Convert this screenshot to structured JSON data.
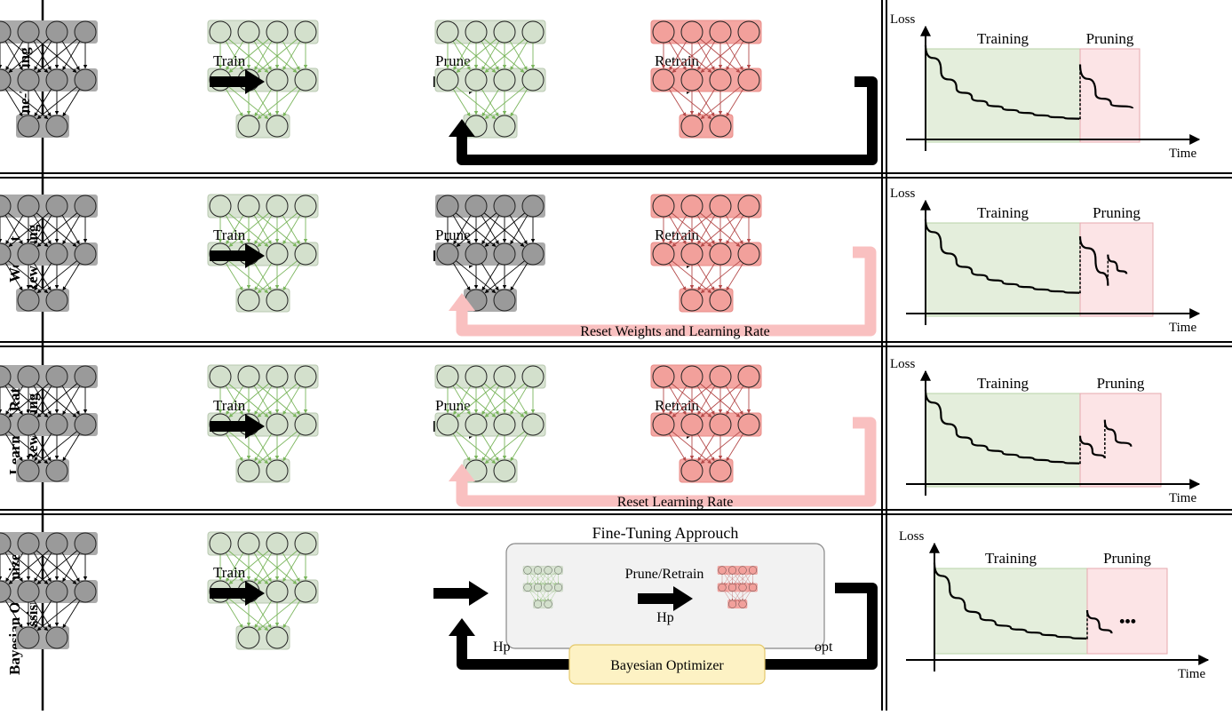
{
  "rows": [
    {
      "label_lines": [
        "Fine-Tuning"
      ],
      "mode": "ft",
      "steps": [
        "Train",
        "Prune",
        "Retrain"
      ],
      "feedback": {
        "style": "dark",
        "label": ""
      },
      "third_net_color": "green",
      "chart_data": {
        "type": "line",
        "xlabel": "Time",
        "ylabel": "Loss",
        "phases": [
          "Training",
          "Pruning"
        ],
        "segments": [
          {
            "x": [
              0,
              1,
              2,
              3,
              4,
              5,
              6,
              7,
              8,
              9,
              10
            ],
            "y": [
              0.88,
              0.64,
              0.48,
              0.39,
              0.33,
              0.29,
              0.26,
              0.235,
              0.215,
              0.2,
              0.19
            ]
          },
          {
            "x": [
              10,
              11,
              12,
              13.4
            ],
            "y": [
              0.7,
              0.43,
              0.33,
              0.29
            ]
          }
        ],
        "drops": [
          10
        ]
      }
    },
    {
      "label_lines": [
        "Weight",
        "Rewinding"
      ],
      "mode": "wr",
      "steps": [
        "Train",
        "Prune",
        "Retrain"
      ],
      "feedback": {
        "style": "pink",
        "label": "Reset Weights and Learning Rate"
      },
      "third_net_color": "gray",
      "chart_data": {
        "type": "line",
        "xlabel": "Time",
        "ylabel": "Loss",
        "phases": [
          "Training",
          "Pruning"
        ],
        "segments": [
          {
            "x": [
              0,
              1,
              2,
              3,
              4,
              5,
              6,
              7,
              8,
              9,
              10
            ],
            "y": [
              0.88,
              0.64,
              0.48,
              0.39,
              0.33,
              0.29,
              0.26,
              0.235,
              0.215,
              0.2,
              0.19
            ]
          },
          {
            "x": [
              10,
              11,
              11.8
            ],
            "y": [
              0.72,
              0.5,
              0.26
            ]
          },
          {
            "x": [
              11.8,
              12.4,
              13
            ],
            "y": [
              0.55,
              0.42,
              0.37
            ]
          }
        ],
        "drops": [
          10,
          11.8
        ]
      }
    },
    {
      "label_lines": [
        "Learning Rate",
        "Rewinding"
      ],
      "mode": "lrr",
      "steps": [
        "Train",
        "Prune",
        "Retrain"
      ],
      "feedback": {
        "style": "pink",
        "label": "Reset Learning Rate"
      },
      "third_net_color": "green",
      "chart_data": {
        "type": "line",
        "xlabel": "Time",
        "ylabel": "Loss",
        "phases": [
          "Training",
          "Pruning"
        ],
        "segments": [
          {
            "x": [
              0,
              1,
              2,
              3,
              4,
              5,
              6,
              7,
              8,
              9,
              10
            ],
            "y": [
              0.88,
              0.64,
              0.48,
              0.39,
              0.33,
              0.29,
              0.26,
              0.235,
              0.215,
              0.2,
              0.19
            ]
          },
          {
            "x": [
              10,
              10.8,
              11.6
            ],
            "y": [
              0.45,
              0.3,
              0.24
            ]
          },
          {
            "x": [
              11.6,
              12.3,
              13.3
            ],
            "y": [
              0.6,
              0.42,
              0.35
            ]
          }
        ],
        "drops": [
          10,
          11.6
        ]
      }
    },
    {
      "label_lines": [
        "Bayesian Optimizer",
        "Assisted"
      ],
      "mode": "bo",
      "steps": [
        "Train",
        "",
        ""
      ],
      "feedback": {
        "style": "dark",
        "label": ""
      },
      "third_net_color": "green",
      "approach_title": "Fine-Tuning Approuch",
      "prune_retrain": "Prune/Retrain",
      "hp_inner": "Hp",
      "hp_outer": "Hp",
      "opt": "opt",
      "optimizer": "Bayesian Optimizer",
      "ellipsis": "•••",
      "chart_data": {
        "type": "line",
        "xlabel": "Time",
        "ylabel": "Loss",
        "phases": [
          "Training",
          "Pruning"
        ],
        "segments": [
          {
            "x": [
              0,
              1,
              2,
              3,
              4,
              5,
              6,
              7,
              8,
              9,
              10
            ],
            "y": [
              0.88,
              0.64,
              0.48,
              0.39,
              0.33,
              0.29,
              0.26,
              0.235,
              0.215,
              0.2,
              0.19
            ]
          },
          {
            "x": [
              10,
              10.8,
              11.6
            ],
            "y": [
              0.45,
              0.3,
              0.24
            ]
          }
        ],
        "drops": [
          10
        ]
      }
    }
  ],
  "colors": {
    "gray_fill": "#aaaaaa",
    "gray_node": "#9a9a9a",
    "gray_edge": "#000000",
    "green_fill": "#d8e3d2",
    "green_stroke": "#b8c8b0",
    "green_node": "#d3e0cc",
    "green_edge": "#7ab55c",
    "red_fill": "#f4a6a2",
    "red_stroke": "#e88d88",
    "red_node": "#f2a09b",
    "red_edge": "#b44a4a",
    "train_bg": "#e4eedc",
    "train_border": "#b7d3a7",
    "prune_bg": "#fce4e6",
    "prune_border": "#e6a8ae",
    "pink_arrow": "#f9c0c0",
    "dark_arrow": "#000000",
    "optimizer_fill": "#fdf2c4",
    "optimizer_stroke": "#e4c86a",
    "approach_fill": "#f2f2f2",
    "approach_stroke": "#888888"
  }
}
